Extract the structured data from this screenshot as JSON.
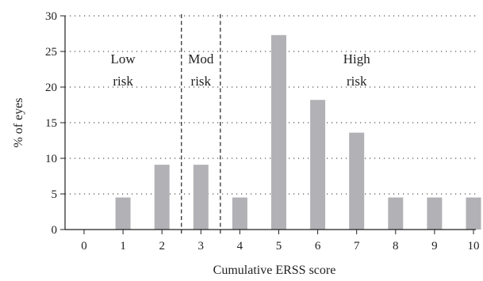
{
  "chart_data": {
    "type": "bar",
    "categories": [
      "0",
      "1",
      "2",
      "3",
      "4",
      "5",
      "6",
      "7",
      "8",
      "9",
      "10"
    ],
    "values": [
      0,
      4.5,
      9.1,
      9.1,
      4.5,
      27.3,
      18.2,
      13.6,
      4.5,
      4.5,
      4.5
    ],
    "xlabel": "Cumulative ERSS score",
    "ylabel": "% of eyes",
    "ylim": [
      0,
      30
    ],
    "yticks": [
      "0",
      "5",
      "10",
      "15",
      "20",
      "25",
      "30"
    ],
    "grid": "horizontal dotted",
    "bar_color": "#b2b2b6",
    "regions": [
      {
        "line1": "Low",
        "line2": "risk",
        "from": 0,
        "to": 2
      },
      {
        "line1": "Mod",
        "line2": "risk",
        "from": 3,
        "to": 3
      },
      {
        "line1": "High",
        "line2": "risk",
        "from": 4,
        "to": 10
      }
    ],
    "region_dividers": [
      2.5,
      3.5
    ]
  }
}
